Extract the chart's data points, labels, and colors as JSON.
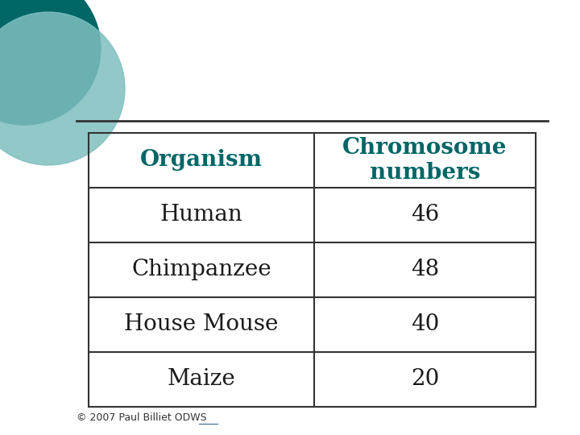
{
  "bg_color": "#f0f0f0",
  "slide_bg": "#ffffff",
  "header_text_color": "#006666",
  "body_text_color": "#1a1a1a",
  "table_header": [
    "Organism",
    "Chromosome\nnumbers"
  ],
  "table_rows": [
    [
      "Human",
      "46"
    ],
    [
      "Chimpanzee",
      "48"
    ],
    [
      "House Mouse",
      "40"
    ],
    [
      "Maize",
      "20"
    ]
  ],
  "header_font_size": 20,
  "body_font_size": 20,
  "line_color": "#333333",
  "separator_line_color": "#333333",
  "circle_color_dark": "#006666",
  "circle_color_light": "#7fbfbf",
  "footer_text": "© 2007 Paul Billiet ODWS",
  "footer_link": "ODWS",
  "footer_font_size": 9
}
